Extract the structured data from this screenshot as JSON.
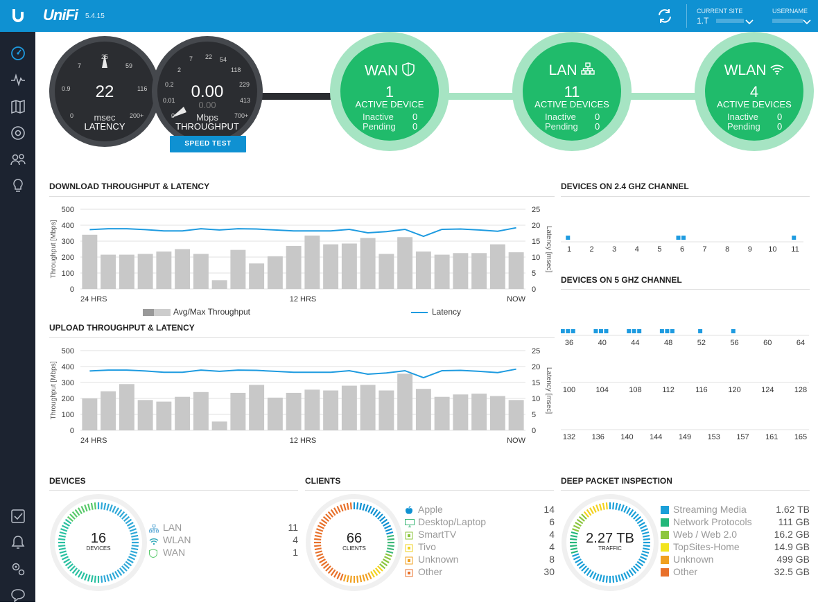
{
  "header": {
    "brand": "UniFi",
    "version": "5.4.15",
    "current_site_label": "CURRENT SITE",
    "current_site_value": "1.T",
    "username_label": "USERNAME",
    "accent": "#0f91d2"
  },
  "sidebar": {
    "items": [
      {
        "icon": "dashboard-icon",
        "active": true
      },
      {
        "icon": "statistics-icon"
      },
      {
        "icon": "map-icon"
      },
      {
        "icon": "devices-icon"
      },
      {
        "icon": "clients-icon"
      },
      {
        "icon": "insights-icon"
      },
      {
        "icon": "alerts-icon"
      },
      {
        "icon": "events-icon"
      },
      {
        "icon": "settings-icon"
      },
      {
        "icon": "chat-icon"
      }
    ]
  },
  "gauges": {
    "latency": {
      "value": "22",
      "unit": "msec",
      "label": "LATENCY",
      "ticks": [
        "25",
        "7",
        "59",
        "0.9",
        "116",
        "0",
        "200+"
      ]
    },
    "throughput": {
      "value": "0.00",
      "sub": "0.00",
      "unit": "Mbps",
      "label": "THROUGHPUT",
      "ticks": [
        "7",
        "22",
        "54",
        "2",
        "118",
        "0.2",
        "229",
        "0.01",
        "413",
        "0",
        "700+"
      ]
    },
    "speed_test": "SPEED TEST"
  },
  "status": {
    "wan": {
      "title": "WAN",
      "count": "1",
      "label": "ACTIVE DEVICE",
      "inactive_label": "Inactive",
      "inactive": "0",
      "pending_label": "Pending",
      "pending": "0"
    },
    "lan": {
      "title": "LAN",
      "count": "11",
      "label": "ACTIVE DEVICES",
      "inactive_label": "Inactive",
      "inactive": "0",
      "pending_label": "Pending",
      "pending": "0"
    },
    "wlan": {
      "title": "WLAN",
      "count": "4",
      "label": "ACTIVE DEVICES",
      "inactive_label": "Inactive",
      "inactive": "0",
      "pending_label": "Pending",
      "pending": "0"
    }
  },
  "download_title": "DOWNLOAD THROUGHPUT & LATENCY",
  "upload_title": "UPLOAD THROUGHPUT & LATENCY",
  "legend": {
    "throughput": "Avg/Max Throughput",
    "latency": "Latency"
  },
  "chart_data": [
    {
      "type": "bar",
      "title": "DOWNLOAD THROUGHPUT & LATENCY",
      "ylabel": "Throughput [Mbps]",
      "y2label": "Latency [msec]",
      "ylim": [
        0,
        500
      ],
      "y2lim": [
        0,
        25
      ],
      "yticks": [
        0,
        100,
        200,
        300,
        400,
        500
      ],
      "y2ticks": [
        0,
        5,
        10,
        15,
        20,
        25
      ],
      "xlabels": [
        "24 HRS",
        "12 HRS",
        "NOW"
      ],
      "series": [
        {
          "name": "Avg/Max Throughput",
          "values": [
            340,
            215,
            215,
            220,
            235,
            250,
            220,
            55,
            245,
            160,
            205,
            270,
            335,
            280,
            285,
            320,
            220,
            325,
            235,
            215,
            225,
            225,
            280,
            230
          ]
        },
        {
          "name": "Latency",
          "values": [
            18.6,
            18.9,
            18.9,
            18.6,
            18.2,
            18.2,
            18.9,
            18.5,
            18.9,
            18.8,
            18.5,
            18.2,
            18.2,
            18.2,
            18.7,
            17.6,
            18.0,
            18.7,
            16.5,
            18.7,
            18.8,
            18.5,
            18.1,
            19.2
          ]
        }
      ]
    },
    {
      "type": "bar",
      "title": "UPLOAD THROUGHPUT & LATENCY",
      "ylabel": "Throughput [Mbps]",
      "y2label": "Latency [msec]",
      "ylim": [
        0,
        500
      ],
      "y2lim": [
        0,
        25
      ],
      "yticks": [
        0,
        100,
        200,
        300,
        400,
        500
      ],
      "y2ticks": [
        0,
        5,
        10,
        15,
        20,
        25
      ],
      "xlabels": [
        "24 HRS",
        "12 HRS",
        "NOW"
      ],
      "series": [
        {
          "name": "Avg/Max Throughput",
          "values": [
            200,
            245,
            290,
            190,
            180,
            210,
            240,
            55,
            235,
            285,
            205,
            235,
            255,
            250,
            280,
            285,
            250,
            355,
            260,
            210,
            225,
            230,
            215,
            190
          ]
        },
        {
          "name": "Latency",
          "values": [
            18.6,
            18.9,
            18.9,
            18.6,
            18.2,
            18.2,
            18.9,
            18.5,
            18.9,
            18.8,
            18.5,
            18.2,
            18.2,
            18.2,
            18.7,
            17.6,
            18.0,
            18.7,
            16.5,
            18.7,
            18.8,
            18.5,
            18.1,
            19.2
          ]
        }
      ]
    }
  ],
  "channels_24": {
    "title": "DEVICES ON 2.4 GHZ CHANNEL",
    "labels": [
      "1",
      "2",
      "3",
      "4",
      "5",
      "6",
      "7",
      "8",
      "9",
      "10",
      "11"
    ],
    "devices": [
      1,
      0,
      0,
      0,
      0,
      2,
      0,
      0,
      0,
      0,
      1
    ]
  },
  "channels_5": {
    "title": "DEVICES ON 5 GHZ CHANNEL",
    "rows": [
      {
        "labels": [
          "36",
          "40",
          "44",
          "48",
          "52",
          "56",
          "60",
          "64"
        ],
        "devices": [
          3,
          3,
          3,
          3,
          1,
          1,
          0,
          0
        ]
      },
      {
        "labels": [
          "100",
          "104",
          "108",
          "112",
          "116",
          "120",
          "124",
          "128"
        ],
        "devices": [
          0,
          0,
          0,
          0,
          0,
          0,
          0,
          0
        ]
      },
      {
        "labels": [
          "132",
          "136",
          "140",
          "144",
          "149",
          "153",
          "157",
          "161",
          "165"
        ],
        "devices": [
          0,
          0,
          0,
          0,
          0,
          0,
          0,
          0,
          0
        ]
      }
    ]
  },
  "devices": {
    "title": "DEVICES",
    "total": "16",
    "total_label": "DEVICES",
    "items": [
      {
        "label": "LAN",
        "value": "11",
        "icon": "lan-icon"
      },
      {
        "label": "WLAN",
        "value": "4",
        "icon": "wifi-icon"
      },
      {
        "label": "WAN",
        "value": "1",
        "icon": "shield-icon"
      }
    ]
  },
  "clients": {
    "title": "CLIENTS",
    "total": "66",
    "total_label": "CLIENTS",
    "items": [
      {
        "label": "Apple",
        "value": "14",
        "icon": "apple-icon",
        "color": "#0f91d2"
      },
      {
        "label": "Desktop/Laptop",
        "value": "6",
        "icon": "desktop-icon",
        "color": "#3cb878"
      },
      {
        "label": "SmartTV",
        "value": "4",
        "icon": "tv-icon",
        "color": "#8cc63e"
      },
      {
        "label": "Tivo",
        "value": "4",
        "icon": "tivo-icon",
        "color": "#f2d21e"
      },
      {
        "label": "Unknown",
        "value": "8",
        "icon": "unknown-icon",
        "color": "#f0a020"
      },
      {
        "label": "Other",
        "value": "30",
        "icon": "other-icon",
        "color": "#e8702a"
      }
    ]
  },
  "dpi": {
    "title": "DEEP PACKET INSPECTION",
    "total": "2.27 TB",
    "total_label": "TRAFFIC",
    "items": [
      {
        "label": "Streaming Media",
        "value": "1.62 TB",
        "color": "#1a9fd8"
      },
      {
        "label": "Network Protocols",
        "value": "111 GB",
        "color": "#23b77a"
      },
      {
        "label": "Web / Web 2.0",
        "value": "16.2 GB",
        "color": "#8cc63e"
      },
      {
        "label": "TopSites-Home",
        "value": "14.9 GB",
        "color": "#f2e41e"
      },
      {
        "label": "Unknown",
        "value": "499 GB",
        "color": "#f0a020"
      },
      {
        "label": "Other",
        "value": "32.5 GB",
        "color": "#e8702a"
      }
    ]
  }
}
